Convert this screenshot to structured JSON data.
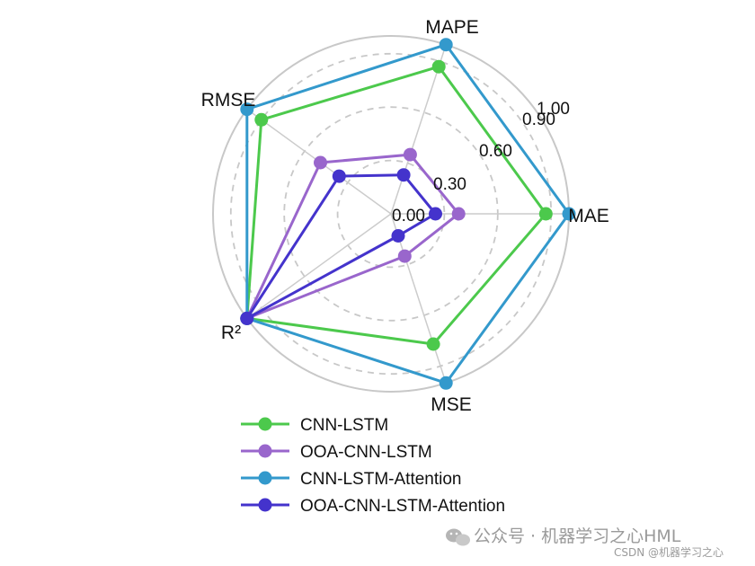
{
  "chart_data": {
    "type": "radar",
    "axes": [
      "MAE",
      "MAPE",
      "RMSE",
      "R²",
      "MSE"
    ],
    "tick_values": [
      0.0,
      0.3,
      0.6,
      0.9,
      1.0
    ],
    "tick_labels": [
      "0.00",
      "0.30",
      "0.60",
      "0.90",
      "1.00"
    ],
    "range": [
      0,
      1
    ],
    "grid": true,
    "legend_position": "bottom",
    "series": [
      {
        "name": "CNN-LSTM",
        "color": "#4cc94c",
        "values": [
          0.87,
          0.87,
          0.9,
          1.0,
          0.77
        ]
      },
      {
        "name": "OOA-CNN-LSTM",
        "color": "#9966cc",
        "values": [
          0.38,
          0.35,
          0.49,
          1.0,
          0.25
        ]
      },
      {
        "name": "CNN-LSTM-Attention",
        "color": "#3399cc",
        "values": [
          1.0,
          1.0,
          1.0,
          1.0,
          1.0
        ]
      },
      {
        "name": "OOA-CNN-LSTM-Attention",
        "color": "#4433cc",
        "values": [
          0.25,
          0.23,
          0.36,
          1.0,
          0.13
        ]
      }
    ]
  },
  "watermark": {
    "main": "公众号 · 机器学习之心HML",
    "small": "CSDN @机器学习之心"
  }
}
